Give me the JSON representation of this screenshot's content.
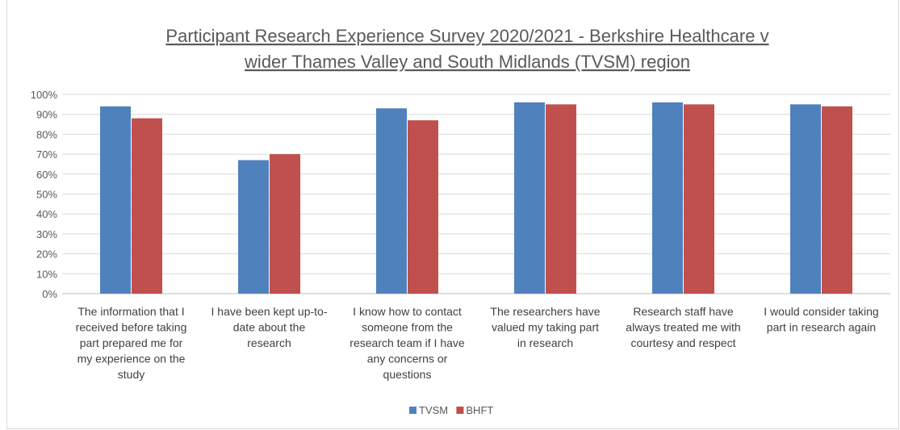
{
  "chart_data": {
    "type": "bar",
    "title_lines": [
      "Participant Research Experience Survey 2020/2021 - Berkshire Healthcare v",
      "wider Thames Valley and South Midlands (TVSM) region"
    ],
    "categories": [
      [
        "The information that I",
        "received before taking",
        "part prepared me for",
        "my experience on the",
        "study"
      ],
      [
        "I have been kept up-to-",
        "date about the",
        "research"
      ],
      [
        "I know how to contact",
        "someone from the",
        "research team if I have",
        "any concerns or",
        "questions"
      ],
      [
        "The researchers have",
        "valued my taking part",
        "in research"
      ],
      [
        "Research staff have",
        "always treated me with",
        "courtesy and respect"
      ],
      [
        "I would consider taking",
        "part in research again"
      ]
    ],
    "series": [
      {
        "name": "TVSM",
        "color": "#4f81bd",
        "values": [
          94,
          67,
          93,
          96,
          96,
          95
        ]
      },
      {
        "name": "BHFT",
        "color": "#c0504d",
        "values": [
          88,
          70,
          87,
          95,
          95,
          94
        ]
      }
    ],
    "yticks": [
      "0%",
      "10%",
      "20%",
      "30%",
      "40%",
      "50%",
      "60%",
      "70%",
      "80%",
      "90%",
      "100%"
    ],
    "ylim": [
      0,
      100
    ],
    "grid": true,
    "legend_position": "bottom"
  }
}
